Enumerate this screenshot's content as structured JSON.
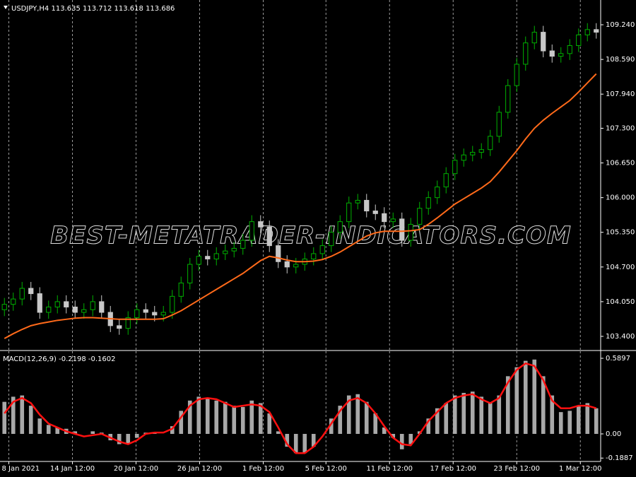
{
  "chart_data": [
    {
      "type": "candlestick",
      "title": "USDJPY,H4  113.635 113.712 113.618 113.686",
      "annotation": "BEST-METATRADER-INDICATORS.COM",
      "up_color": "#00b000",
      "down_color": "#c8c8c8",
      "xlim": [
        -0.5,
        67.5
      ],
      "ylim": [
        103.148,
        109.704
      ],
      "yticks": [
        {
          "value": 109.24,
          "label": "109.240"
        },
        {
          "value": 108.59,
          "label": "108.590"
        },
        {
          "value": 107.94,
          "label": "107.940"
        },
        {
          "value": 107.3,
          "label": "107.300"
        },
        {
          "value": 106.65,
          "label": "106.650"
        },
        {
          "value": 106.0,
          "label": "106.000"
        },
        {
          "value": 105.35,
          "label": "105.350"
        },
        {
          "value": 104.7,
          "label": "104.700"
        },
        {
          "value": 104.05,
          "label": "104.050"
        },
        {
          "value": 103.4,
          "label": "103.400"
        }
      ],
      "open": [
        103.9,
        104.0,
        104.1,
        104.3,
        104.2,
        103.85,
        103.95,
        104.05,
        103.95,
        103.85,
        103.9,
        104.05,
        103.85,
        103.6,
        103.55,
        103.75,
        103.9,
        103.85,
        103.8,
        103.85,
        104.15,
        104.4,
        104.75,
        104.9,
        104.85,
        104.95,
        105.0,
        105.05,
        105.2,
        105.55,
        105.45,
        105.1,
        104.8,
        104.7,
        104.75,
        104.85,
        104.95,
        105.1,
        105.35,
        105.55,
        105.9,
        105.95,
        105.75,
        105.7,
        105.55,
        105.6,
        105.2,
        105.5,
        105.8,
        106.0,
        106.2,
        106.45,
        106.7,
        106.8,
        106.85,
        106.9,
        107.15,
        107.6,
        108.1,
        108.5,
        108.9,
        109.1,
        108.75,
        108.65,
        108.7,
        108.85,
        109.05,
        109.15
      ],
      "high": [
        104.12,
        104.22,
        104.42,
        104.42,
        104.32,
        104.07,
        104.17,
        104.17,
        104.07,
        104.02,
        104.17,
        104.17,
        103.97,
        103.72,
        103.87,
        104.02,
        104.02,
        103.97,
        103.97,
        104.27,
        104.52,
        104.87,
        105.02,
        105.02,
        105.07,
        105.12,
        105.17,
        105.32,
        105.67,
        105.67,
        105.57,
        105.22,
        104.92,
        104.87,
        104.97,
        105.07,
        105.22,
        105.47,
        105.67,
        106.02,
        106.07,
        106.07,
        105.87,
        105.82,
        105.72,
        105.72,
        105.62,
        105.92,
        106.12,
        106.32,
        106.57,
        106.82,
        106.92,
        106.97,
        107.02,
        107.27,
        107.72,
        108.22,
        108.62,
        109.02,
        109.22,
        109.22,
        108.87,
        108.82,
        108.97,
        109.17,
        109.27,
        109.27
      ],
      "low": [
        103.78,
        103.88,
        103.98,
        104.08,
        103.73,
        103.73,
        103.83,
        103.83,
        103.73,
        103.73,
        103.78,
        103.73,
        103.48,
        103.43,
        103.43,
        103.63,
        103.73,
        103.68,
        103.68,
        103.73,
        104.03,
        104.28,
        104.63,
        104.73,
        104.73,
        104.83,
        104.88,
        104.93,
        105.08,
        105.33,
        104.98,
        104.68,
        104.58,
        104.58,
        104.63,
        104.73,
        104.83,
        104.98,
        105.23,
        105.43,
        105.78,
        105.63,
        105.58,
        105.43,
        105.43,
        105.08,
        105.08,
        105.38,
        105.68,
        105.88,
        106.08,
        106.33,
        106.58,
        106.68,
        106.73,
        106.78,
        107.03,
        107.48,
        107.98,
        108.38,
        108.78,
        108.63,
        108.53,
        108.53,
        108.58,
        108.73,
        108.93,
        108.98
      ],
      "close": [
        104.0,
        104.1,
        104.3,
        104.2,
        103.85,
        103.95,
        104.05,
        103.95,
        103.85,
        103.9,
        104.05,
        103.85,
        103.6,
        103.55,
        103.75,
        103.9,
        103.85,
        103.8,
        103.85,
        104.15,
        104.4,
        104.75,
        104.9,
        104.85,
        104.95,
        105.0,
        105.05,
        105.2,
        105.55,
        105.45,
        105.1,
        104.8,
        104.7,
        104.75,
        104.85,
        104.95,
        105.1,
        105.35,
        105.55,
        105.9,
        105.95,
        105.75,
        105.7,
        105.55,
        105.6,
        105.2,
        105.5,
        105.8,
        106.0,
        106.2,
        106.45,
        106.7,
        106.8,
        106.85,
        106.9,
        107.15,
        107.6,
        108.1,
        108.5,
        108.9,
        109.1,
        108.75,
        108.65,
        108.7,
        108.85,
        109.05,
        109.15,
        109.1
      ],
      "ma": {
        "color": "#ff6a1a",
        "values": [
          103.36,
          103.45,
          103.53,
          103.6,
          103.64,
          103.67,
          103.7,
          103.72,
          103.74,
          103.75,
          103.75,
          103.74,
          103.73,
          103.72,
          103.72,
          103.72,
          103.72,
          103.72,
          103.73,
          103.8,
          103.88,
          103.98,
          104.08,
          104.18,
          104.28,
          104.38,
          104.48,
          104.58,
          104.7,
          104.82,
          104.9,
          104.87,
          104.83,
          104.8,
          104.8,
          104.81,
          104.84,
          104.9,
          104.98,
          105.08,
          105.18,
          105.28,
          105.34,
          105.37,
          105.37,
          105.37,
          105.38,
          105.4,
          105.5,
          105.62,
          105.75,
          105.88,
          105.98,
          106.08,
          106.18,
          106.3,
          106.48,
          106.68,
          106.88,
          107.1,
          107.3,
          107.45,
          107.58,
          107.7,
          107.82,
          107.98,
          108.15,
          108.32
        ]
      }
    },
    {
      "type": "macd",
      "title": "MACD(12,26,9) -0.2198 -0.1602",
      "xlim": [
        -0.5,
        67.5
      ],
      "xticks": [
        {
          "value": 0.5,
          "label": "8 Jan 2021"
        },
        {
          "value": 7.7,
          "label": "14 Jan 12:00"
        },
        {
          "value": 14.9,
          "label": "20 Jan 12:00"
        },
        {
          "value": 22.1,
          "label": "26 Jan 12:00"
        },
        {
          "value": 29.3,
          "label": "1 Feb 12:00"
        },
        {
          "value": 36.4,
          "label": "5 Feb 12:00"
        },
        {
          "value": 43.6,
          "label": "11 Feb 12:00"
        },
        {
          "value": 50.8,
          "label": "17 Feb 12:00"
        },
        {
          "value": 58.0,
          "label": "23 Feb 12:00"
        },
        {
          "value": 65.2,
          "label": "1 Mar 12:00"
        }
      ],
      "ylim": [
        -0.215,
        0.645
      ],
      "yticks": [
        0.5897,
        {
          "value": 0,
          "label": "0.00"
        },
        -0.1887
      ],
      "histogram": {
        "color": "#a8a8a8",
        "values": [
          0.25,
          0.29,
          0.3,
          0.22,
          0.12,
          0.07,
          0.05,
          0.04,
          0.02,
          0.0,
          0.02,
          0.01,
          -0.05,
          -0.08,
          -0.08,
          -0.03,
          0.01,
          0.01,
          0.0,
          0.06,
          0.18,
          0.26,
          0.29,
          0.28,
          0.26,
          0.25,
          0.22,
          0.21,
          0.26,
          0.24,
          0.16,
          0.02,
          -0.1,
          -0.15,
          -0.15,
          -0.1,
          0.0,
          0.12,
          0.22,
          0.3,
          0.31,
          0.25,
          0.16,
          0.05,
          -0.03,
          -0.12,
          -0.08,
          0.02,
          0.12,
          0.2,
          0.24,
          0.3,
          0.32,
          0.33,
          0.29,
          0.24,
          0.3,
          0.45,
          0.52,
          0.57,
          0.58,
          0.45,
          0.3,
          0.17,
          0.18,
          0.22,
          0.24,
          0.2
        ]
      },
      "signal": {
        "color": "#ff1010",
        "values": [
          0.16,
          0.25,
          0.28,
          0.24,
          0.15,
          0.08,
          0.05,
          0.02,
          0.0,
          -0.02,
          -0.01,
          0.0,
          -0.03,
          -0.06,
          -0.08,
          -0.05,
          0.0,
          0.01,
          0.01,
          0.04,
          0.13,
          0.22,
          0.27,
          0.28,
          0.27,
          0.24,
          0.21,
          0.22,
          0.23,
          0.22,
          0.17,
          0.05,
          -0.08,
          -0.15,
          -0.15,
          -0.1,
          -0.02,
          0.08,
          0.18,
          0.26,
          0.28,
          0.24,
          0.16,
          0.06,
          -0.03,
          -0.08,
          -0.09,
          0.0,
          0.1,
          0.17,
          0.24,
          0.28,
          0.3,
          0.31,
          0.27,
          0.24,
          0.28,
          0.4,
          0.5,
          0.55,
          0.53,
          0.42,
          0.26,
          0.2,
          0.2,
          0.22,
          0.22,
          0.2
        ]
      }
    }
  ]
}
